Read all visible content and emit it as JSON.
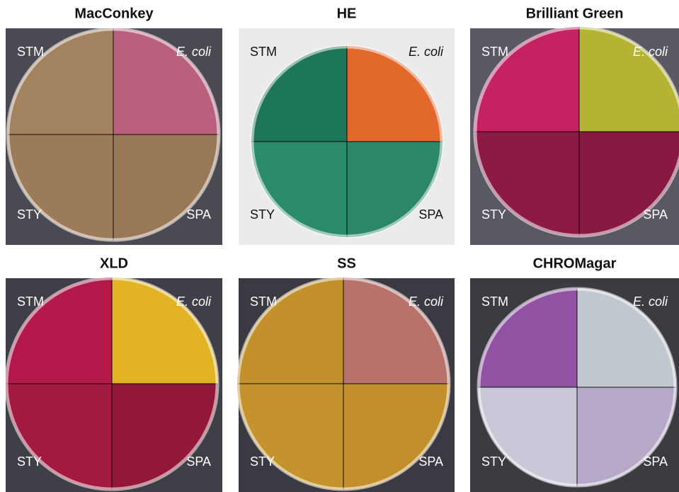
{
  "panels": [
    {
      "title": "MacConkey",
      "labels": {
        "top_left": "STM",
        "top_right": "E. coli",
        "bottom_left": "STY",
        "bottom_right": "SPA"
      }
    },
    {
      "title": "HE",
      "labels": {
        "top_left": "STM",
        "top_right": "E. coli",
        "bottom_left": "STY",
        "bottom_right": "SPA"
      }
    },
    {
      "title": "Brilliant Green",
      "labels": {
        "top_left": "STM",
        "top_right": "E. coli",
        "bottom_left": "STY",
        "bottom_right": "SPA"
      }
    },
    {
      "title": "XLD",
      "labels": {
        "top_left": "STM",
        "top_right": "E. coli",
        "bottom_left": "STY",
        "bottom_right": "SPA"
      }
    },
    {
      "title": "SS",
      "labels": {
        "top_left": "STM",
        "top_right": "E. coli",
        "bottom_left": "STY",
        "bottom_right": "SPA"
      }
    },
    {
      "title": "CHROMagar",
      "labels": {
        "top_left": "STM",
        "top_right": "E. coli",
        "bottom_left": "STY",
        "bottom_right": "SPA"
      }
    }
  ]
}
